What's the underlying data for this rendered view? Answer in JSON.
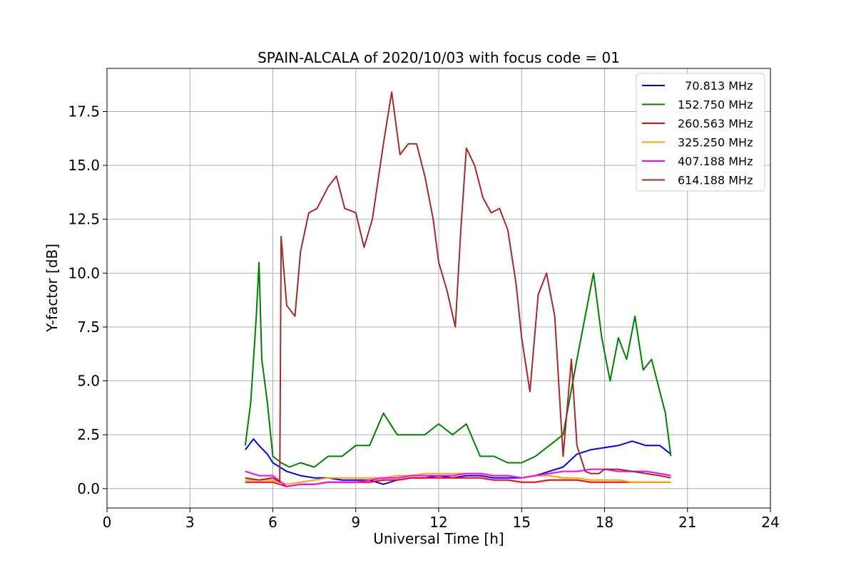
{
  "chart_data": {
    "type": "line",
    "title": "SPAIN-ALCALA of 2020/10/03 with focus code = 01",
    "xlabel": "Universal Time [h]",
    "ylabel": "Y-factor [dB]",
    "xlim": [
      0,
      24
    ],
    "ylim": [
      -0.9,
      19.5
    ],
    "xticks": [
      0,
      3,
      6,
      9,
      12,
      15,
      18,
      21,
      24
    ],
    "xtick_labels": [
      "0",
      "3",
      "6",
      "9",
      "12",
      "15",
      "18",
      "21",
      "24"
    ],
    "yticks": [
      0,
      2.5,
      5,
      7.5,
      10,
      12.5,
      15,
      17.5
    ],
    "ytick_labels": [
      "0.0",
      "2.5",
      "5.0",
      "7.5",
      "10.0",
      "12.5",
      "15.0",
      "17.5"
    ],
    "grid": true,
    "legend_position": "top-right",
    "series": [
      {
        "name": "  70.813 MHz",
        "color": "#0000ff",
        "x": [
          5.0,
          5.3,
          5.5,
          5.8,
          6.0,
          6.5,
          7.0,
          7.5,
          8.0,
          8.5,
          9.0,
          9.5,
          10.0,
          10.5,
          11.0,
          11.5,
          12.0,
          12.5,
          13.0,
          13.5,
          14.0,
          14.5,
          15.0,
          15.5,
          16.0,
          16.5,
          17.0,
          17.5,
          18.0,
          18.5,
          19.0,
          19.5,
          20.0,
          20.4
        ],
        "values": [
          1.8,
          2.3,
          2.0,
          1.6,
          1.2,
          0.8,
          0.6,
          0.5,
          0.5,
          0.4,
          0.4,
          0.4,
          0.2,
          0.4,
          0.5,
          0.5,
          0.6,
          0.5,
          0.6,
          0.6,
          0.5,
          0.5,
          0.5,
          0.6,
          0.8,
          1.0,
          1.6,
          1.8,
          1.9,
          2.0,
          2.2,
          2.0,
          2.0,
          1.6
        ]
      },
      {
        "name": "152.750 MHz",
        "color": "#008000",
        "x": [
          5.0,
          5.2,
          5.4,
          5.5,
          5.6,
          5.8,
          6.0,
          6.3,
          6.6,
          7.0,
          7.5,
          8.0,
          8.5,
          9.0,
          9.5,
          10.0,
          10.5,
          11.0,
          11.5,
          12.0,
          12.5,
          13.0,
          13.5,
          14.0,
          14.5,
          15.0,
          15.5,
          16.0,
          16.5,
          17.0,
          17.3,
          17.6,
          17.9,
          18.2,
          18.5,
          18.8,
          19.1,
          19.4,
          19.7,
          20.0,
          20.2,
          20.4
        ],
        "values": [
          2.0,
          4.0,
          8.0,
          10.5,
          6.0,
          4.0,
          1.5,
          1.2,
          1.0,
          1.2,
          1.0,
          1.5,
          1.5,
          2.0,
          2.0,
          3.5,
          2.5,
          2.5,
          2.5,
          3.0,
          2.5,
          3.0,
          1.5,
          1.5,
          1.2,
          1.2,
          1.5,
          2.0,
          2.5,
          6.0,
          8.0,
          10.0,
          7.0,
          5.0,
          7.0,
          6.0,
          8.0,
          5.5,
          6.0,
          4.5,
          3.5,
          1.5
        ]
      },
      {
        "name": "260.563 MHz",
        "color": "#ff0000",
        "x": [
          5.0,
          5.5,
          6.0,
          6.5,
          7.0,
          7.5,
          8.0,
          8.5,
          9.0,
          9.5,
          10.0,
          10.5,
          11.0,
          11.5,
          12.0,
          12.5,
          13.0,
          13.5,
          14.0,
          14.5,
          15.0,
          15.5,
          16.0,
          16.5,
          17.0,
          17.5,
          18.0,
          18.5,
          19.0,
          19.5,
          20.0,
          20.4
        ],
        "values": [
          0.3,
          0.3,
          0.3,
          0.1,
          0.2,
          0.2,
          0.3,
          0.3,
          0.3,
          0.3,
          0.4,
          0.4,
          0.5,
          0.5,
          0.5,
          0.5,
          0.5,
          0.5,
          0.4,
          0.4,
          0.3,
          0.3,
          0.4,
          0.4,
          0.4,
          0.3,
          0.3,
          0.3,
          0.3,
          0.3,
          0.3,
          0.3
        ]
      },
      {
        "name": "325.250 MHz",
        "color": "#ffa500",
        "x": [
          5.0,
          5.5,
          6.0,
          6.5,
          7.0,
          7.5,
          8.0,
          8.5,
          9.0,
          9.5,
          10.0,
          10.5,
          11.0,
          11.5,
          12.0,
          12.5,
          13.0,
          13.5,
          14.0,
          14.5,
          15.0,
          15.5,
          16.0,
          16.5,
          17.0,
          17.5,
          18.0,
          18.5,
          19.0,
          19.5,
          20.0,
          20.4
        ],
        "values": [
          0.4,
          0.4,
          0.4,
          0.2,
          0.3,
          0.4,
          0.5,
          0.5,
          0.5,
          0.5,
          0.5,
          0.6,
          0.6,
          0.7,
          0.7,
          0.7,
          0.7,
          0.7,
          0.6,
          0.6,
          0.5,
          0.6,
          0.6,
          0.5,
          0.5,
          0.4,
          0.4,
          0.4,
          0.3,
          0.3,
          0.3,
          0.3
        ]
      },
      {
        "name": "407.188 MHz",
        "color": "#ff00ff",
        "x": [
          5.0,
          5.5,
          6.0,
          6.5,
          7.0,
          7.5,
          8.0,
          8.5,
          9.0,
          9.5,
          10.0,
          10.5,
          11.0,
          11.5,
          12.0,
          12.5,
          13.0,
          13.5,
          14.0,
          14.5,
          15.0,
          15.5,
          16.0,
          16.5,
          17.0,
          17.5,
          18.0,
          18.5,
          19.0,
          19.5,
          20.0,
          20.4
        ],
        "values": [
          0.8,
          0.6,
          0.6,
          0.1,
          0.2,
          0.2,
          0.3,
          0.3,
          0.3,
          0.4,
          0.5,
          0.5,
          0.6,
          0.6,
          0.6,
          0.6,
          0.7,
          0.7,
          0.6,
          0.6,
          0.5,
          0.6,
          0.7,
          0.8,
          0.8,
          0.9,
          0.9,
          0.8,
          0.8,
          0.8,
          0.7,
          0.6
        ]
      },
      {
        "name": "614.188 MHz",
        "color": "#a52a2a",
        "x": [
          5.0,
          5.5,
          6.0,
          6.25,
          6.3,
          6.5,
          6.8,
          7.0,
          7.3,
          7.6,
          8.0,
          8.3,
          8.6,
          9.0,
          9.3,
          9.6,
          10.0,
          10.3,
          10.6,
          10.9,
          11.2,
          11.5,
          11.8,
          12.0,
          12.3,
          12.6,
          12.8,
          13.0,
          13.3,
          13.6,
          13.9,
          14.2,
          14.5,
          14.8,
          15.0,
          15.3,
          15.6,
          15.9,
          16.2,
          16.5,
          16.8,
          17.0,
          17.3,
          17.5,
          17.8,
          18.0,
          18.5,
          19.0,
          19.5,
          20.0,
          20.4
        ],
        "values": [
          0.5,
          0.4,
          0.5,
          0.3,
          11.7,
          8.5,
          8.0,
          11.0,
          12.8,
          13.0,
          14.0,
          14.5,
          13.0,
          12.8,
          11.2,
          12.5,
          16.0,
          18.4,
          15.5,
          16.0,
          16.0,
          14.5,
          12.5,
          10.5,
          9.2,
          7.5,
          12.0,
          15.8,
          15.0,
          13.5,
          12.8,
          13.0,
          12.0,
          9.5,
          7.0,
          4.5,
          9.0,
          10.0,
          8.0,
          1.5,
          6.0,
          2.0,
          0.8,
          0.7,
          0.7,
          0.9,
          0.9,
          0.8,
          0.7,
          0.6,
          0.5
        ]
      }
    ]
  }
}
